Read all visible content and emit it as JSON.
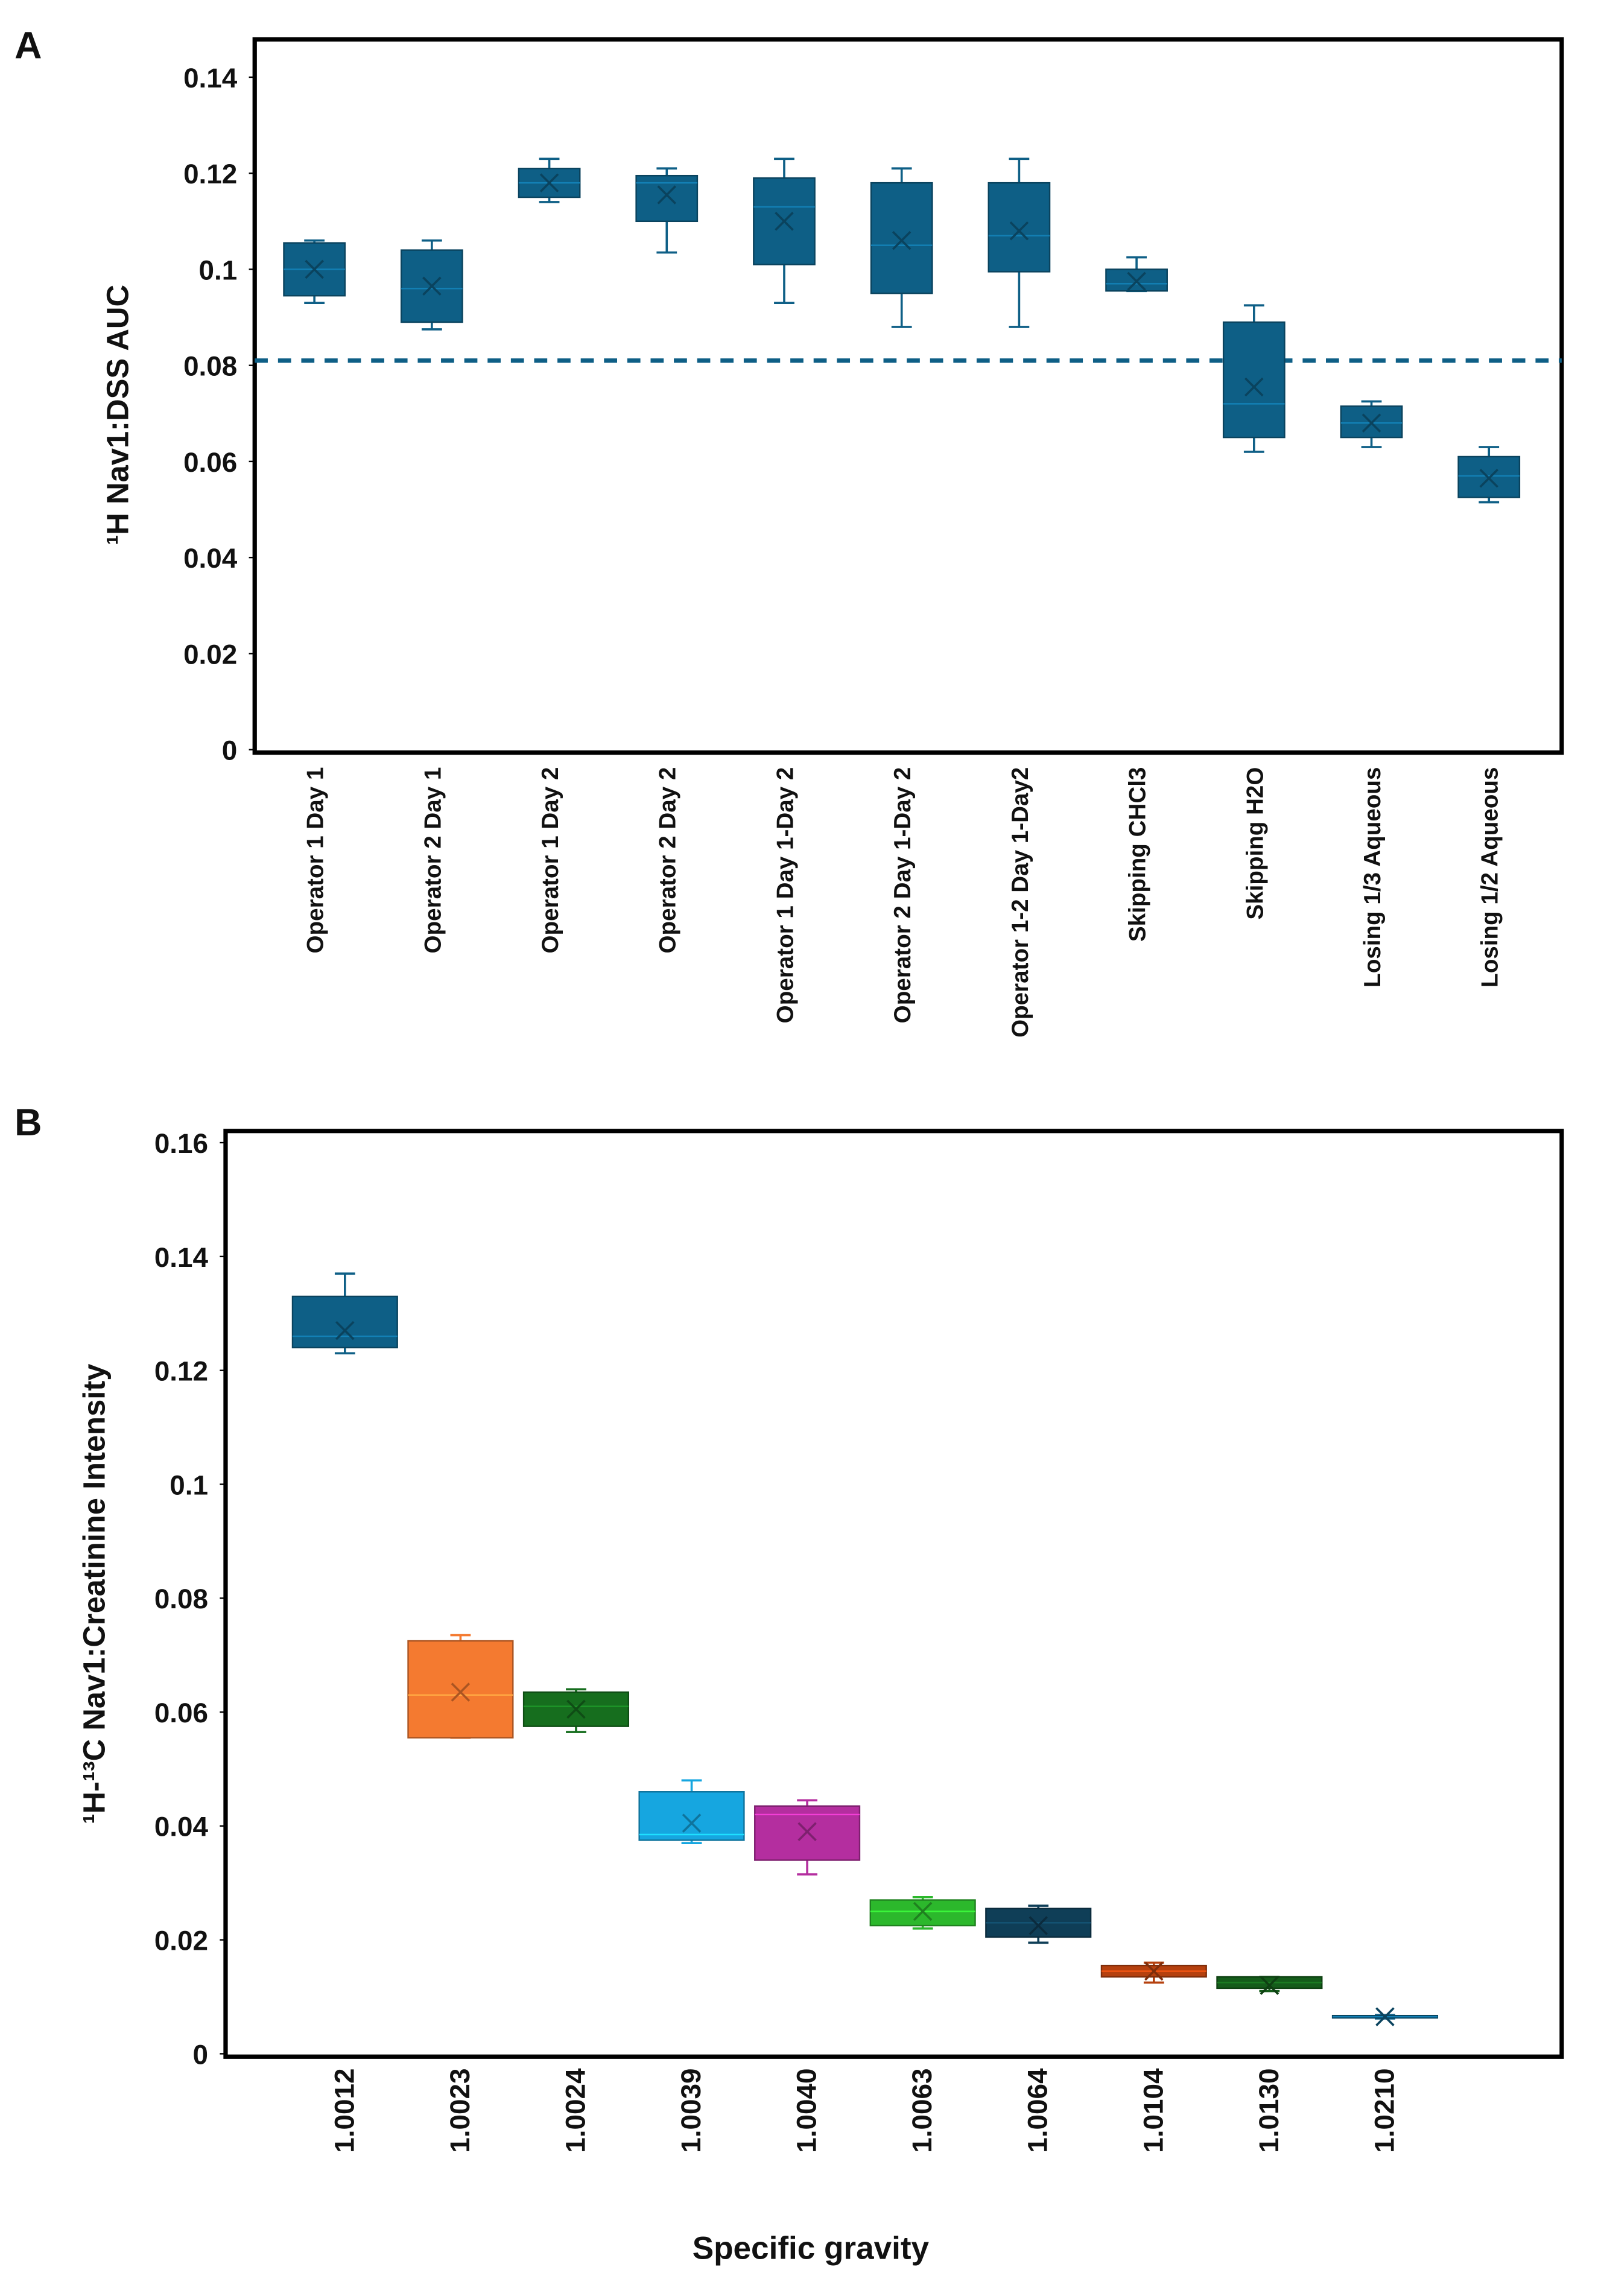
{
  "chart_data": [
    {
      "type": "box",
      "panel_label": "A",
      "ylabel": "¹H Nav1:DSS AUC",
      "categories": [
        "Operator 1 Day 1",
        "Operator 2 Day 1",
        "Operator 1 Day 2",
        "Operator 2 Day 2",
        "Operator 1 Day 1-Day 2",
        "Operator 2 Day 1-Day 2",
        "Operator 1-2 Day 1-Day2",
        "Skipping CHCl3",
        "Skipping H2O",
        "Losing 1/3 Aqueous",
        "Losing 1/2 Aqueous"
      ],
      "min": [
        0.093,
        0.0875,
        0.114,
        0.1035,
        0.093,
        0.088,
        0.088,
        0.0955,
        0.062,
        0.063,
        0.0515
      ],
      "q1": [
        0.0945,
        0.089,
        0.115,
        0.11,
        0.101,
        0.095,
        0.0995,
        0.0955,
        0.065,
        0.065,
        0.0525
      ],
      "median": [
        0.1,
        0.096,
        0.118,
        0.118,
        0.113,
        0.105,
        0.107,
        0.097,
        0.072,
        0.068,
        0.057
      ],
      "q3": [
        0.1055,
        0.104,
        0.121,
        0.1195,
        0.119,
        0.118,
        0.118,
        0.1,
        0.089,
        0.0715,
        0.061
      ],
      "max": [
        0.106,
        0.106,
        0.123,
        0.121,
        0.123,
        0.121,
        0.123,
        0.1025,
        0.0925,
        0.0725,
        0.063
      ],
      "mean": [
        0.1,
        0.0965,
        0.118,
        0.1155,
        0.11,
        0.106,
        0.108,
        0.0975,
        0.0755,
        0.068,
        0.0565
      ],
      "color": "#0e5f86",
      "reference_line": 0.081,
      "ylim": [
        0,
        0.14
      ],
      "yticks": [
        0,
        0.02,
        0.04,
        0.06,
        0.08,
        0.1,
        0.12,
        0.14
      ]
    },
    {
      "type": "box",
      "panel_label": "B",
      "ylabel": "¹H-¹³C Nav1:Creatinine Intensity",
      "xlabel": "Specific gravity",
      "categories": [
        "1.0012",
        "1.0023",
        "1.0024",
        "1.0039",
        "1.0040",
        "1.0063",
        "1.0064",
        "1.0104",
        "1.0130",
        "1.0210"
      ],
      "min": [
        0.123,
        0.0555,
        0.0565,
        0.037,
        0.0315,
        0.022,
        0.0195,
        0.0125,
        0.011,
        0.0062
      ],
      "q1": [
        0.124,
        0.0555,
        0.0575,
        0.0375,
        0.034,
        0.0225,
        0.0205,
        0.0135,
        0.0115,
        0.0063
      ],
      "median": [
        0.126,
        0.063,
        0.061,
        0.0385,
        0.042,
        0.025,
        0.023,
        0.0145,
        0.0125,
        0.0065
      ],
      "q3": [
        0.133,
        0.0725,
        0.0635,
        0.046,
        0.0435,
        0.027,
        0.0255,
        0.0155,
        0.0135,
        0.0067
      ],
      "max": [
        0.137,
        0.0735,
        0.064,
        0.048,
        0.0445,
        0.0275,
        0.026,
        0.016,
        0.0135,
        0.0068
      ],
      "mean": [
        0.127,
        0.0635,
        0.0605,
        0.0405,
        0.039,
        0.025,
        0.0225,
        0.0145,
        0.012,
        0.0065
      ],
      "colors": [
        "#0e5f86",
        "#f47a30",
        "#166e1e",
        "#16a6e0",
        "#b42e9f",
        "#2cb82c",
        "#0f3e57",
        "#b5400e",
        "#145c1a",
        "#0e5f86"
      ],
      "ylim": [
        0,
        0.16
      ],
      "yticks": [
        0,
        0.02,
        0.04,
        0.06,
        0.08,
        0.1,
        0.12,
        0.14,
        0.16
      ]
    }
  ]
}
